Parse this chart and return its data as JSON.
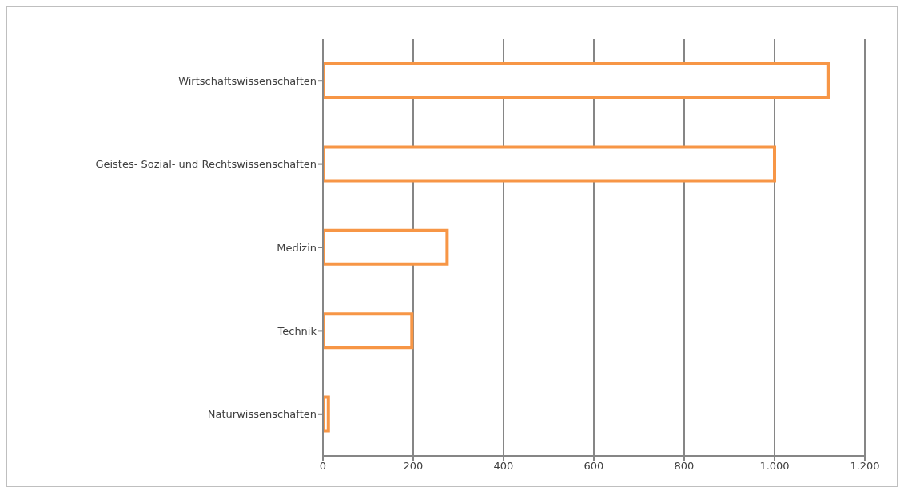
{
  "chart_data": {
    "type": "bar",
    "orientation": "horizontal",
    "categories": [
      "Wirtschaftswissenschaften",
      "Geistes- Sozial- und Rechtswissenschaften",
      "Medizin",
      "Technik",
      "Naturwissenschaften"
    ],
    "values": [
      1120,
      1000,
      275,
      197,
      12
    ],
    "color": "#f79646",
    "xlim": [
      0,
      1200
    ],
    "xticks": [
      0,
      200,
      400,
      600,
      800,
      {
        "value": 1000,
        "label": "1.000"
      },
      {
        "value": 1200,
        "label": "1.200"
      }
    ],
    "grid": "x"
  }
}
